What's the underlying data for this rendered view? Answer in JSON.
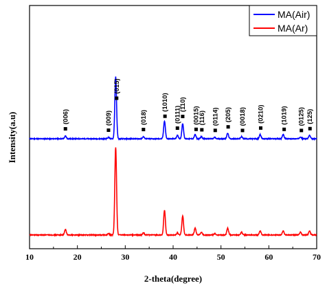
{
  "chart_data": {
    "type": "line",
    "xlabel": "2-theta(degree)",
    "ylabel": "Intensity(a.u)",
    "xlim": [
      10,
      70
    ],
    "x_ticks": [
      10,
      20,
      30,
      40,
      50,
      60,
      70
    ],
    "y_ticks": [],
    "grid": false,
    "legend_position": "top-right",
    "series": [
      {
        "name": "MA(Air)",
        "color": "#0000ff",
        "baseline": 0.0,
        "peaks": [
          {
            "x": 17.5,
            "h": 4
          },
          {
            "x": 26.5,
            "h": 2
          },
          {
            "x": 28.0,
            "h": 90
          },
          {
            "x": 33.8,
            "h": 3
          },
          {
            "x": 38.2,
            "h": 26
          },
          {
            "x": 40.9,
            "h": 5
          },
          {
            "x": 42.0,
            "h": 22
          },
          {
            "x": 44.6,
            "h": 6
          },
          {
            "x": 45.9,
            "h": 3
          },
          {
            "x": 48.7,
            "h": 2
          },
          {
            "x": 51.4,
            "h": 8
          },
          {
            "x": 54.3,
            "h": 3
          },
          {
            "x": 58.2,
            "h": 6
          },
          {
            "x": 63.0,
            "h": 6
          },
          {
            "x": 66.6,
            "h": 3
          },
          {
            "x": 68.5,
            "h": 5
          }
        ]
      },
      {
        "name": "MA(Ar)",
        "color": "#ff0000",
        "baseline": 0.0,
        "peaks": [
          {
            "x": 17.5,
            "h": 8
          },
          {
            "x": 26.5,
            "h": 2
          },
          {
            "x": 28.0,
            "h": 128
          },
          {
            "x": 33.8,
            "h": 3
          },
          {
            "x": 38.2,
            "h": 36
          },
          {
            "x": 40.9,
            "h": 3
          },
          {
            "x": 42.0,
            "h": 28
          },
          {
            "x": 44.6,
            "h": 10
          },
          {
            "x": 45.9,
            "h": 4
          },
          {
            "x": 48.7,
            "h": 2
          },
          {
            "x": 51.4,
            "h": 10
          },
          {
            "x": 54.3,
            "h": 4
          },
          {
            "x": 58.2,
            "h": 6
          },
          {
            "x": 63.0,
            "h": 6
          },
          {
            "x": 66.6,
            "h": 4
          },
          {
            "x": 68.5,
            "h": 6
          }
        ]
      }
    ],
    "annotations": [
      {
        "label": "(006)",
        "x": 17.5
      },
      {
        "label": "(009)",
        "x": 26.5
      },
      {
        "label": "(015)",
        "x": 28.2
      },
      {
        "label": "(018)",
        "x": 33.8
      },
      {
        "label": "(1010)",
        "x": 38.3
      },
      {
        "label": "(0111)",
        "x": 40.9
      },
      {
        "label": "(110)",
        "x": 42.0
      },
      {
        "label": "(0015)",
        "x": 44.8
      },
      {
        "label": "(116)",
        "x": 46.0
      },
      {
        "label": "(0114)",
        "x": 48.8
      },
      {
        "label": "(205)",
        "x": 51.5
      },
      {
        "label": "(0018)",
        "x": 54.5
      },
      {
        "label": "(0210)",
        "x": 58.3
      },
      {
        "label": "(1019)",
        "x": 63.2
      },
      {
        "label": "(0125)",
        "x": 66.8
      },
      {
        "label": "(125)",
        "x": 68.6
      }
    ]
  }
}
